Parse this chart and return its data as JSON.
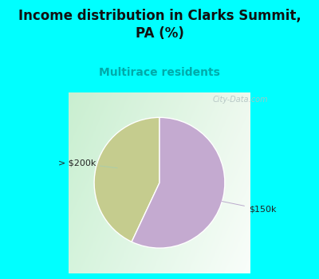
{
  "title": "Income distribution in Clarks Summit,\nPA (%)",
  "subtitle": "Multirace residents",
  "subtitle_color": "#00aaaa",
  "title_color": "#111111",
  "slices": [
    {
      "label": "> $200k",
      "value": 43,
      "color": "#c5cc8e"
    },
    {
      "label": "$150k",
      "value": 57,
      "color": "#c4aad0"
    }
  ],
  "start_angle": 90,
  "fig_bg_color": "#00ffff",
  "watermark": "City-Data.com",
  "figsize": [
    4.0,
    3.5
  ],
  "dpi": 100,
  "title_fontsize": 12,
  "subtitle_fontsize": 10
}
